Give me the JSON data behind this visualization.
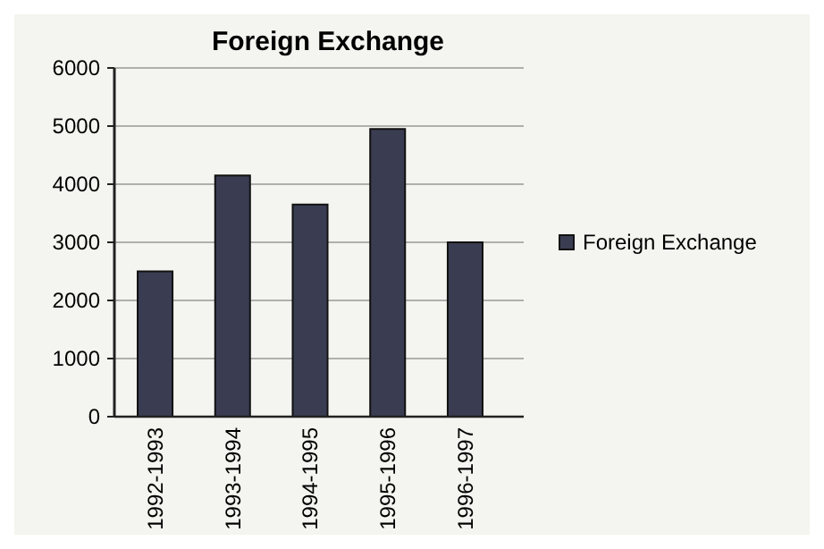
{
  "chart_data": {
    "type": "bar",
    "title": "Foreign Exchange",
    "categories": [
      "1992-1993",
      "1993-1994",
      "1994-1995",
      "1995-1996",
      "1996-1997"
    ],
    "series": [
      {
        "name": "Foreign Exchange",
        "color": "#3a3d52",
        "values": [
          2500,
          4150,
          3650,
          4950,
          3000
        ]
      }
    ],
    "ylim": [
      0,
      6000
    ],
    "yticks": [
      0,
      1000,
      2000,
      3000,
      4000,
      5000,
      6000
    ],
    "grid": "y",
    "legend": "right"
  }
}
